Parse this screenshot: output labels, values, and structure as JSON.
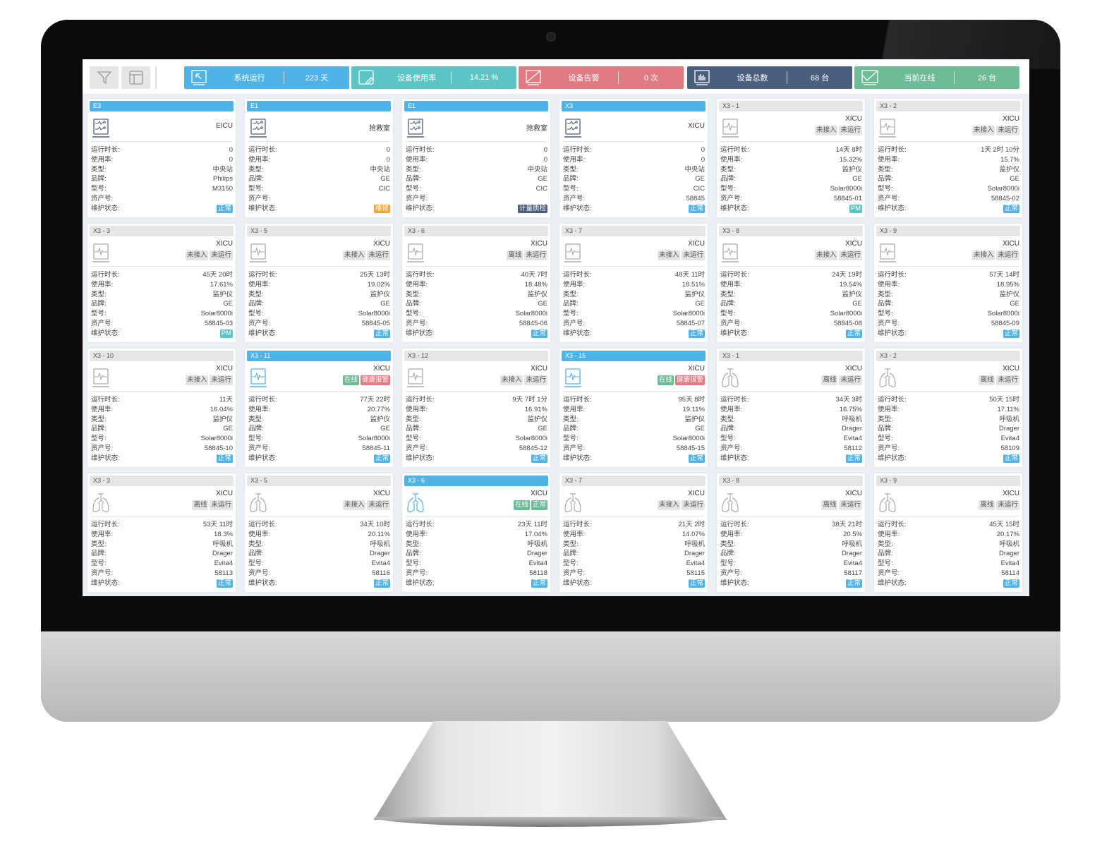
{
  "colors": {
    "blue": "#4fb3e8",
    "teal": "#5bc4c4",
    "red": "#e27a82",
    "navy": "#4a5f7e",
    "green": "#6dbb97",
    "orange": "#f0a53a",
    "grey_tag": "#e4e4e4"
  },
  "toolbar": {
    "filter_icon": "filter-icon",
    "layout_icon": "layout-icon"
  },
  "stats": [
    {
      "label": "系统运行",
      "value": "223 天",
      "color": "#4fb3e8",
      "icon": "cursor-screen-icon"
    },
    {
      "label": "设备使用率",
      "value": "14.21 %",
      "color": "#5bc4c4",
      "icon": "edit-screen-icon"
    },
    {
      "label": "设备告警",
      "value": "0 次",
      "color": "#e27a82",
      "icon": "alarm-screen-icon"
    },
    {
      "label": "设备总数",
      "value": "68 台",
      "color": "#4a5f7e",
      "icon": "bar-chart-icon"
    },
    {
      "label": "当前在线",
      "value": "26 台",
      "color": "#6dbb97",
      "icon": "online-screen-icon"
    }
  ],
  "field_labels": [
    "运行时长:",
    "使用率:",
    "类型:",
    "品牌:",
    "型号:",
    "资产号:",
    "维护状态:"
  ],
  "cards": [
    {
      "title": "E3",
      "active": true,
      "icon": "central-station",
      "dept": "EICU",
      "tags": [],
      "values": [
        "0",
        "0",
        "中央站",
        "Philips",
        "M3150",
        ""
      ],
      "status": "正常",
      "status_color": "#4fb3e8"
    },
    {
      "title": "E1",
      "active": true,
      "icon": "central-station",
      "dept": "抢救室",
      "tags": [],
      "values": [
        "0",
        "0",
        "中央站",
        "GE",
        "CIC",
        ""
      ],
      "status": "维修",
      "status_color": "#f0a53a"
    },
    {
      "title": "E1",
      "active": true,
      "icon": "central-station",
      "dept": "抢救室",
      "tags": [],
      "values": [
        "0",
        "0",
        "中央站",
        "GE",
        "CIC",
        ""
      ],
      "status": "计量质检",
      "status_color": "#4a5f7e"
    },
    {
      "title": "X3",
      "active": true,
      "icon": "central-station",
      "dept": "XICU",
      "tags": [],
      "values": [
        "0",
        "0",
        "中央站",
        "GE",
        "CIC",
        "58845"
      ],
      "status": "正常",
      "status_color": "#4fb3e8"
    },
    {
      "title": "X3 - 1",
      "active": false,
      "icon": "monitor",
      "dept": "XICU",
      "tags": [
        {
          "text": "未接入",
          "color": ""
        },
        {
          "text": "未运行",
          "color": ""
        }
      ],
      "values": [
        "14天 8时",
        "15.32%",
        "监护仪",
        "GE",
        "Solar8000i",
        "58845-01"
      ],
      "status": "PM",
      "status_color": "#5bc4c4"
    },
    {
      "title": "X3 - 2",
      "active": false,
      "icon": "monitor",
      "dept": "XICU",
      "tags": [
        {
          "text": "未接入",
          "color": ""
        },
        {
          "text": "未运行",
          "color": ""
        }
      ],
      "values": [
        "1天 2时 10分",
        "15.7%",
        "监护仪",
        "GE",
        "Solar8000i",
        "58845-02"
      ],
      "status": "正常",
      "status_color": "#4fb3e8"
    },
    {
      "title": "X3 - 3",
      "active": false,
      "icon": "monitor",
      "dept": "XICU",
      "tags": [
        {
          "text": "未接入",
          "color": ""
        },
        {
          "text": "未运行",
          "color": ""
        }
      ],
      "values": [
        "45天 20时",
        "17.61%",
        "监护仪",
        "GE",
        "Solar8000i",
        "58845-03"
      ],
      "status": "PM",
      "status_color": "#5bc4c4"
    },
    {
      "title": "X3 - 5",
      "active": false,
      "icon": "monitor",
      "dept": "XICU",
      "tags": [
        {
          "text": "未接入",
          "color": ""
        },
        {
          "text": "未运行",
          "color": ""
        }
      ],
      "values": [
        "25天 13时",
        "19.02%",
        "监护仪",
        "GE",
        "Solar8000i",
        "58845-05"
      ],
      "status": "正常",
      "status_color": "#4fb3e8"
    },
    {
      "title": "X3 - 6",
      "active": false,
      "icon": "monitor",
      "dept": "XICU",
      "tags": [
        {
          "text": "离线",
          "color": ""
        },
        {
          "text": "未运行",
          "color": ""
        }
      ],
      "values": [
        "40天 7时",
        "18.48%",
        "监护仪",
        "GE",
        "Solar8000i",
        "58845-06"
      ],
      "status": "正常",
      "status_color": "#4fb3e8"
    },
    {
      "title": "X3 - 7",
      "active": false,
      "icon": "monitor",
      "dept": "XICU",
      "tags": [
        {
          "text": "未接入",
          "color": ""
        },
        {
          "text": "未运行",
          "color": ""
        }
      ],
      "values": [
        "48天 11时",
        "18.51%",
        "监护仪",
        "GE",
        "Solar8000i",
        "58845-07"
      ],
      "status": "正常",
      "status_color": "#4fb3e8"
    },
    {
      "title": "X3 - 8",
      "active": false,
      "icon": "monitor",
      "dept": "XICU",
      "tags": [
        {
          "text": "未接入",
          "color": ""
        },
        {
          "text": "未运行",
          "color": ""
        }
      ],
      "values": [
        "24天 19时",
        "19.54%",
        "监护仪",
        "GE",
        "Solar8000i",
        "58845-08"
      ],
      "status": "正常",
      "status_color": "#4fb3e8"
    },
    {
      "title": "X3 - 9",
      "active": false,
      "icon": "monitor",
      "dept": "XICU",
      "tags": [
        {
          "text": "未接入",
          "color": ""
        },
        {
          "text": "未运行",
          "color": ""
        }
      ],
      "values": [
        "57天 14时",
        "18.95%",
        "监护仪",
        "GE",
        "Solar8000i",
        "58845-09"
      ],
      "status": "正常",
      "status_color": "#4fb3e8"
    },
    {
      "title": "X3 - 10",
      "active": false,
      "icon": "monitor",
      "dept": "XICU",
      "tags": [
        {
          "text": "未接入",
          "color": ""
        },
        {
          "text": "未运行",
          "color": ""
        }
      ],
      "values": [
        "11天",
        "16.04%",
        "监护仪",
        "GE",
        "Solar8000i",
        "58845-10"
      ],
      "status": "正常",
      "status_color": "#4fb3e8"
    },
    {
      "title": "X3 - 11",
      "active": true,
      "icon": "monitor",
      "dept": "XICU",
      "tags": [
        {
          "text": "在线",
          "color": "#6dbb97"
        },
        {
          "text": "健康报警",
          "color": "#e57a80"
        }
      ],
      "values": [
        "77天 22时",
        "20.77%",
        "监护仪",
        "GE",
        "Solar8000i",
        "58845-11"
      ],
      "status": "正常",
      "status_color": "#4fb3e8"
    },
    {
      "title": "X3 - 12",
      "active": false,
      "icon": "monitor",
      "dept": "XICU",
      "tags": [
        {
          "text": "未接入",
          "color": ""
        },
        {
          "text": "未运行",
          "color": ""
        }
      ],
      "values": [
        "9天 7时 1分",
        "16.91%",
        "监护仪",
        "GE",
        "Solar8000i",
        "58845-12"
      ],
      "status": "正常",
      "status_color": "#4fb3e8"
    },
    {
      "title": "X3 - 15",
      "active": true,
      "icon": "monitor",
      "dept": "XICU",
      "tags": [
        {
          "text": "在线",
          "color": "#6dbb97"
        },
        {
          "text": "健康报警",
          "color": "#e57a80"
        }
      ],
      "values": [
        "95天 8时",
        "19.11%",
        "监护仪",
        "GE",
        "Solar8000i",
        "58845-15"
      ],
      "status": "正常",
      "status_color": "#4fb3e8"
    },
    {
      "title": "X3 - 1",
      "active": false,
      "icon": "ventilator",
      "dept": "XICU",
      "tags": [
        {
          "text": "离线",
          "color": ""
        },
        {
          "text": "未运行",
          "color": ""
        }
      ],
      "values": [
        "34天 3时",
        "16.75%",
        "呼吸机",
        "Drager",
        "Evita4",
        "58112"
      ],
      "status": "正常",
      "status_color": "#4fb3e8"
    },
    {
      "title": "X3 - 2",
      "active": false,
      "icon": "ventilator",
      "dept": "XICU",
      "tags": [
        {
          "text": "离线",
          "color": ""
        },
        {
          "text": "未运行",
          "color": ""
        }
      ],
      "values": [
        "50天 15时",
        "17.11%",
        "呼吸机",
        "Drager",
        "Evita4",
        "58109"
      ],
      "status": "正常",
      "status_color": "#4fb3e8"
    },
    {
      "title": "X3 - 3",
      "active": false,
      "icon": "ventilator",
      "dept": "XICU",
      "tags": [
        {
          "text": "离线",
          "color": ""
        },
        {
          "text": "未运行",
          "color": ""
        }
      ],
      "values": [
        "53天 11时",
        "18.3%",
        "呼吸机",
        "Drager",
        "Evita4",
        "58113"
      ],
      "status": "正常",
      "status_color": "#4fb3e8"
    },
    {
      "title": "X3 - 5",
      "active": false,
      "icon": "ventilator",
      "dept": "XICU",
      "tags": [
        {
          "text": "未接入",
          "color": ""
        },
        {
          "text": "未运行",
          "color": ""
        }
      ],
      "values": [
        "34天 10时",
        "20.11%",
        "呼吸机",
        "Drager",
        "Evita4",
        "58116"
      ],
      "status": "正常",
      "status_color": "#4fb3e8"
    },
    {
      "title": "X3 - 6",
      "active": true,
      "icon": "ventilator",
      "dept": "XICU",
      "tags": [
        {
          "text": "在线",
          "color": "#6dbb97"
        },
        {
          "text": "正常",
          "color": "#6dbb97"
        }
      ],
      "values": [
        "23天 11时",
        "17.04%",
        "呼吸机",
        "Drager",
        "Evita4",
        "58118"
      ],
      "status": "正常",
      "status_color": "#4fb3e8"
    },
    {
      "title": "X3 - 7",
      "active": false,
      "icon": "ventilator",
      "dept": "XICU",
      "tags": [
        {
          "text": "未接入",
          "color": ""
        },
        {
          "text": "未运行",
          "color": ""
        }
      ],
      "values": [
        "21天 2时",
        "14.07%",
        "呼吸机",
        "Drager",
        "Evita4",
        "58115"
      ],
      "status": "正常",
      "status_color": "#4fb3e8"
    },
    {
      "title": "X3 - 8",
      "active": false,
      "icon": "ventilator",
      "dept": "XICU",
      "tags": [
        {
          "text": "离线",
          "color": ""
        },
        {
          "text": "未运行",
          "color": ""
        }
      ],
      "values": [
        "38天 21时",
        "20.5%",
        "呼吸机",
        "Drager",
        "Evita4",
        "58117"
      ],
      "status": "正常",
      "status_color": "#4fb3e8"
    },
    {
      "title": "X3 - 9",
      "active": false,
      "icon": "ventilator",
      "dept": "XICU",
      "tags": [
        {
          "text": "离线",
          "color": ""
        },
        {
          "text": "未运行",
          "color": ""
        }
      ],
      "values": [
        "45天 15时",
        "20.17%",
        "呼吸机",
        "Drager",
        "Evita4",
        "58114"
      ],
      "status": "正常",
      "status_color": "#4fb3e8"
    }
  ]
}
